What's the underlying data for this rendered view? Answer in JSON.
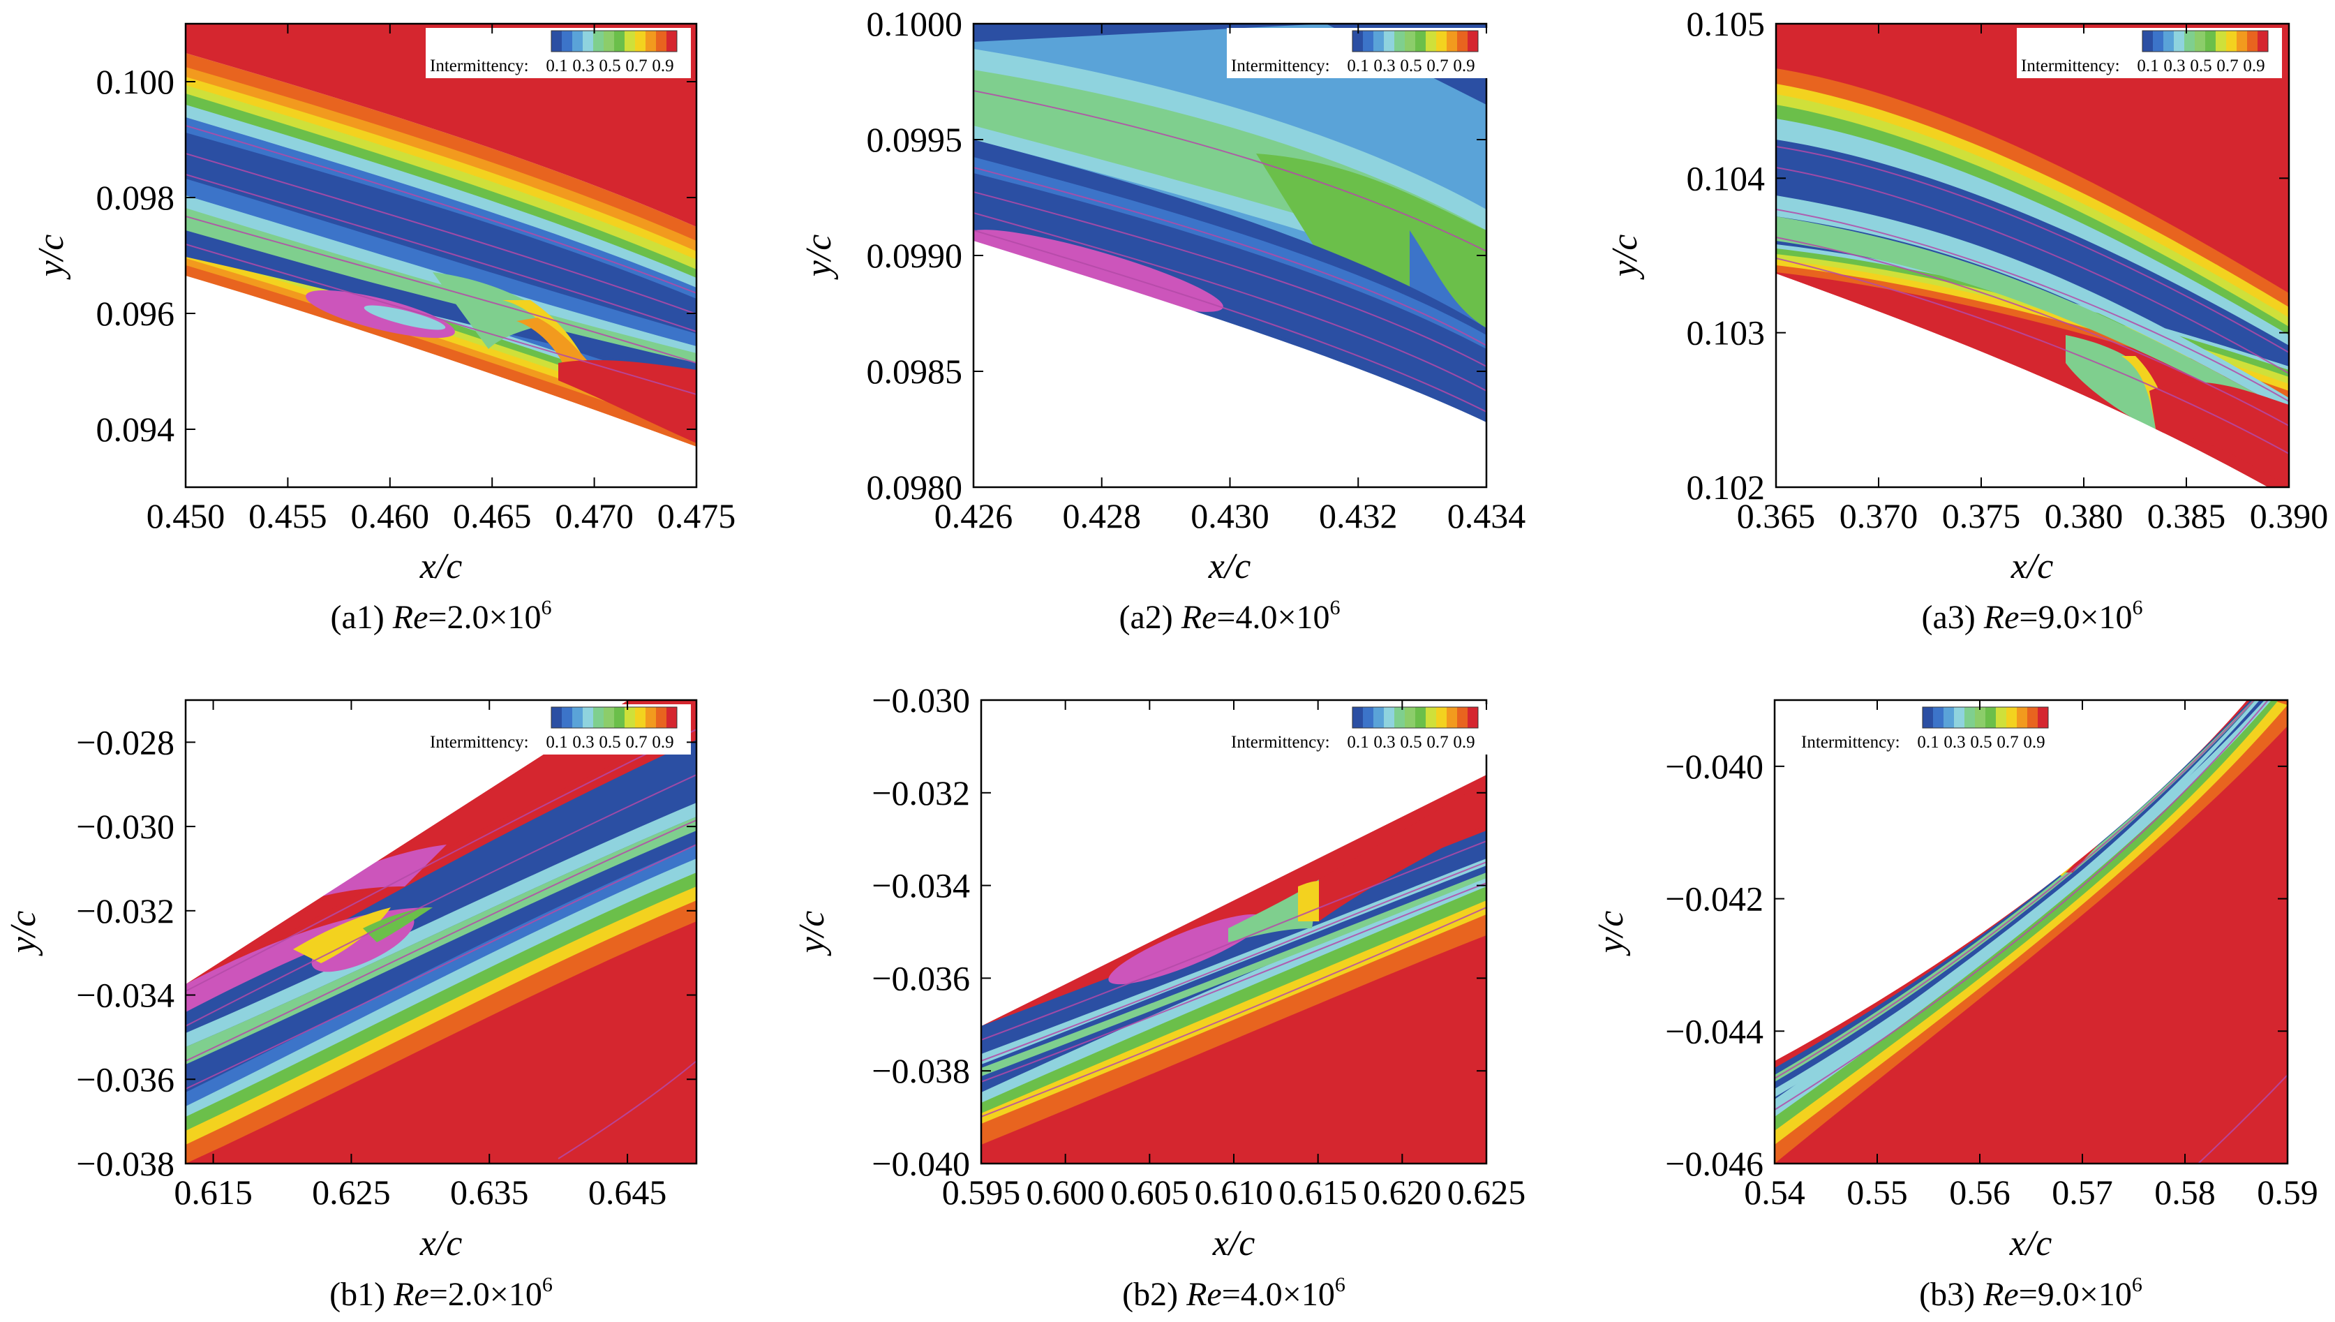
{
  "legend": {
    "title": "Intermittency:",
    "tick_labels": [
      "0.1",
      "0.3",
      "0.5",
      "0.7",
      "0.9"
    ],
    "colors": [
      "#2b4fa3",
      "#3c74c9",
      "#5aa3d8",
      "#8fd3de",
      "#7fcf8e",
      "#8ccd6a",
      "#6bbf4a",
      "#cfe03a",
      "#f3d21f",
      "#f29a1e",
      "#e8641f",
      "#d5262f"
    ]
  },
  "colors": {
    "red": "#d5262f",
    "orange": "#e8641f",
    "yellow": "#f3d21f",
    "lime": "#cfe03a",
    "green": "#6bbf4a",
    "lightgreen": "#7fcf8e",
    "cyan": "#8fd3de",
    "lightblue": "#5aa3d8",
    "blue": "#3c74c9",
    "darkblue": "#2b4fa3",
    "magenta": "#cc55bb",
    "streamline": "#b44aa8"
  },
  "chart_data": [
    {
      "id": "a1",
      "type": "contour",
      "caption": {
        "label": "(a1) ",
        "var": "Re",
        "value": "=2.0×10",
        "exp": "6"
      },
      "xlabel": "x/c",
      "ylabel": "y/c",
      "xlim": [
        0.45,
        0.475
      ],
      "ylim": [
        0.093,
        0.101
      ],
      "xticks": [
        "0.450",
        "0.455",
        "0.460",
        "0.465",
        "0.470",
        "0.475"
      ],
      "xtick_values": [
        0.45,
        0.455,
        0.46,
        0.465,
        0.47,
        0.475
      ],
      "yticks": [
        "0.094",
        "0.096",
        "0.098",
        "0.100"
      ],
      "ytick_values": [
        0.094,
        0.096,
        0.098,
        0.1
      ],
      "legend_position": "top-right",
      "separation_bubble": {
        "x_start": 0.457,
        "x_end": 0.465
      }
    },
    {
      "id": "a2",
      "type": "contour",
      "caption": {
        "label": "(a2) ",
        "var": "Re",
        "value": "=4.0×10",
        "exp": "6"
      },
      "xlabel": "x/c",
      "ylabel": "y/c",
      "xlim": [
        0.426,
        0.434
      ],
      "ylim": [
        0.098,
        0.1
      ],
      "xticks": [
        "0.426",
        "0.428",
        "0.430",
        "0.432",
        "0.434"
      ],
      "xtick_values": [
        0.426,
        0.428,
        0.43,
        0.432,
        0.434
      ],
      "yticks": [
        "0.0980",
        "0.0985",
        "0.0990",
        "0.0995",
        "0.1000"
      ],
      "ytick_values": [
        0.098,
        0.0985,
        0.099,
        0.0995,
        0.1
      ],
      "legend_position": "top-right",
      "separation_bubble": {
        "x_start": 0.427,
        "x_end": 0.431
      }
    },
    {
      "id": "a3",
      "type": "contour",
      "caption": {
        "label": "(a3) ",
        "var": "Re",
        "value": "=9.0×10",
        "exp": "6"
      },
      "xlabel": "x/c",
      "ylabel": "y/c",
      "xlim": [
        0.365,
        0.39
      ],
      "ylim": [
        0.102,
        0.105
      ],
      "xticks": [
        "0.365",
        "0.370",
        "0.375",
        "0.380",
        "0.385",
        "0.390"
      ],
      "xtick_values": [
        0.365,
        0.37,
        0.375,
        0.38,
        0.385,
        0.39
      ],
      "yticks": [
        "0.102",
        "0.103",
        "0.104",
        "0.105"
      ],
      "ytick_values": [
        0.102,
        0.103,
        0.104,
        0.105
      ],
      "legend_position": "top-right",
      "transition_x": 0.381
    },
    {
      "id": "b1",
      "type": "contour",
      "caption": {
        "label": "(b1) ",
        "var": "Re",
        "value": "=2.0×10",
        "exp": "6"
      },
      "xlabel": "x/c",
      "ylabel": "y/c",
      "xlim": [
        0.613,
        0.65
      ],
      "ylim": [
        -0.038,
        -0.027
      ],
      "xticks": [
        "0.615",
        "0.625",
        "0.635",
        "0.645"
      ],
      "xtick_values": [
        0.615,
        0.625,
        0.635,
        0.645
      ],
      "yticks": [
        "−0.038",
        "−0.036",
        "−0.034",
        "−0.032",
        "−0.030",
        "−0.028"
      ],
      "ytick_values": [
        -0.038,
        -0.036,
        -0.034,
        -0.032,
        -0.03,
        -0.028
      ],
      "legend_position": "top-right",
      "separation_bubble": {
        "x_start": 0.613,
        "x_end": 0.63
      }
    },
    {
      "id": "b2",
      "type": "contour",
      "caption": {
        "label": "(b2) ",
        "var": "Re",
        "value": "=4.0×10",
        "exp": "6"
      },
      "xlabel": "x/c",
      "ylabel": "y/c",
      "xlim": [
        0.595,
        0.625
      ],
      "ylim": [
        -0.04,
        -0.03
      ],
      "xticks": [
        "0.595",
        "0.600",
        "0.605",
        "0.610",
        "0.615",
        "0.620",
        "0.625"
      ],
      "xtick_values": [
        0.595,
        0.6,
        0.605,
        0.61,
        0.615,
        0.62,
        0.625
      ],
      "yticks": [
        "−0.040",
        "−0.038",
        "−0.036",
        "−0.034",
        "−0.032",
        "−0.030"
      ],
      "ytick_values": [
        -0.04,
        -0.038,
        -0.036,
        -0.034,
        -0.032,
        -0.03
      ],
      "legend_position": "top-right",
      "separation_bubble": {
        "x_start": 0.603,
        "x_end": 0.613
      }
    },
    {
      "id": "b3",
      "type": "contour",
      "caption": {
        "label": "(b3) ",
        "var": "Re",
        "value": "=9.0×10",
        "exp": "6"
      },
      "xlabel": "x/c",
      "ylabel": "y/c",
      "xlim": [
        0.54,
        0.59
      ],
      "ylim": [
        -0.046,
        -0.039
      ],
      "xticks": [
        "0.54",
        "0.55",
        "0.56",
        "0.57",
        "0.58",
        "0.59"
      ],
      "xtick_values": [
        0.54,
        0.55,
        0.56,
        0.57,
        0.58,
        0.59
      ],
      "yticks": [
        "−0.046",
        "−0.044",
        "−0.042",
        "−0.040"
      ],
      "ytick_values": [
        -0.046,
        -0.044,
        -0.042,
        -0.04
      ],
      "legend_position": "top-left",
      "transition_x": 0.57
    }
  ]
}
